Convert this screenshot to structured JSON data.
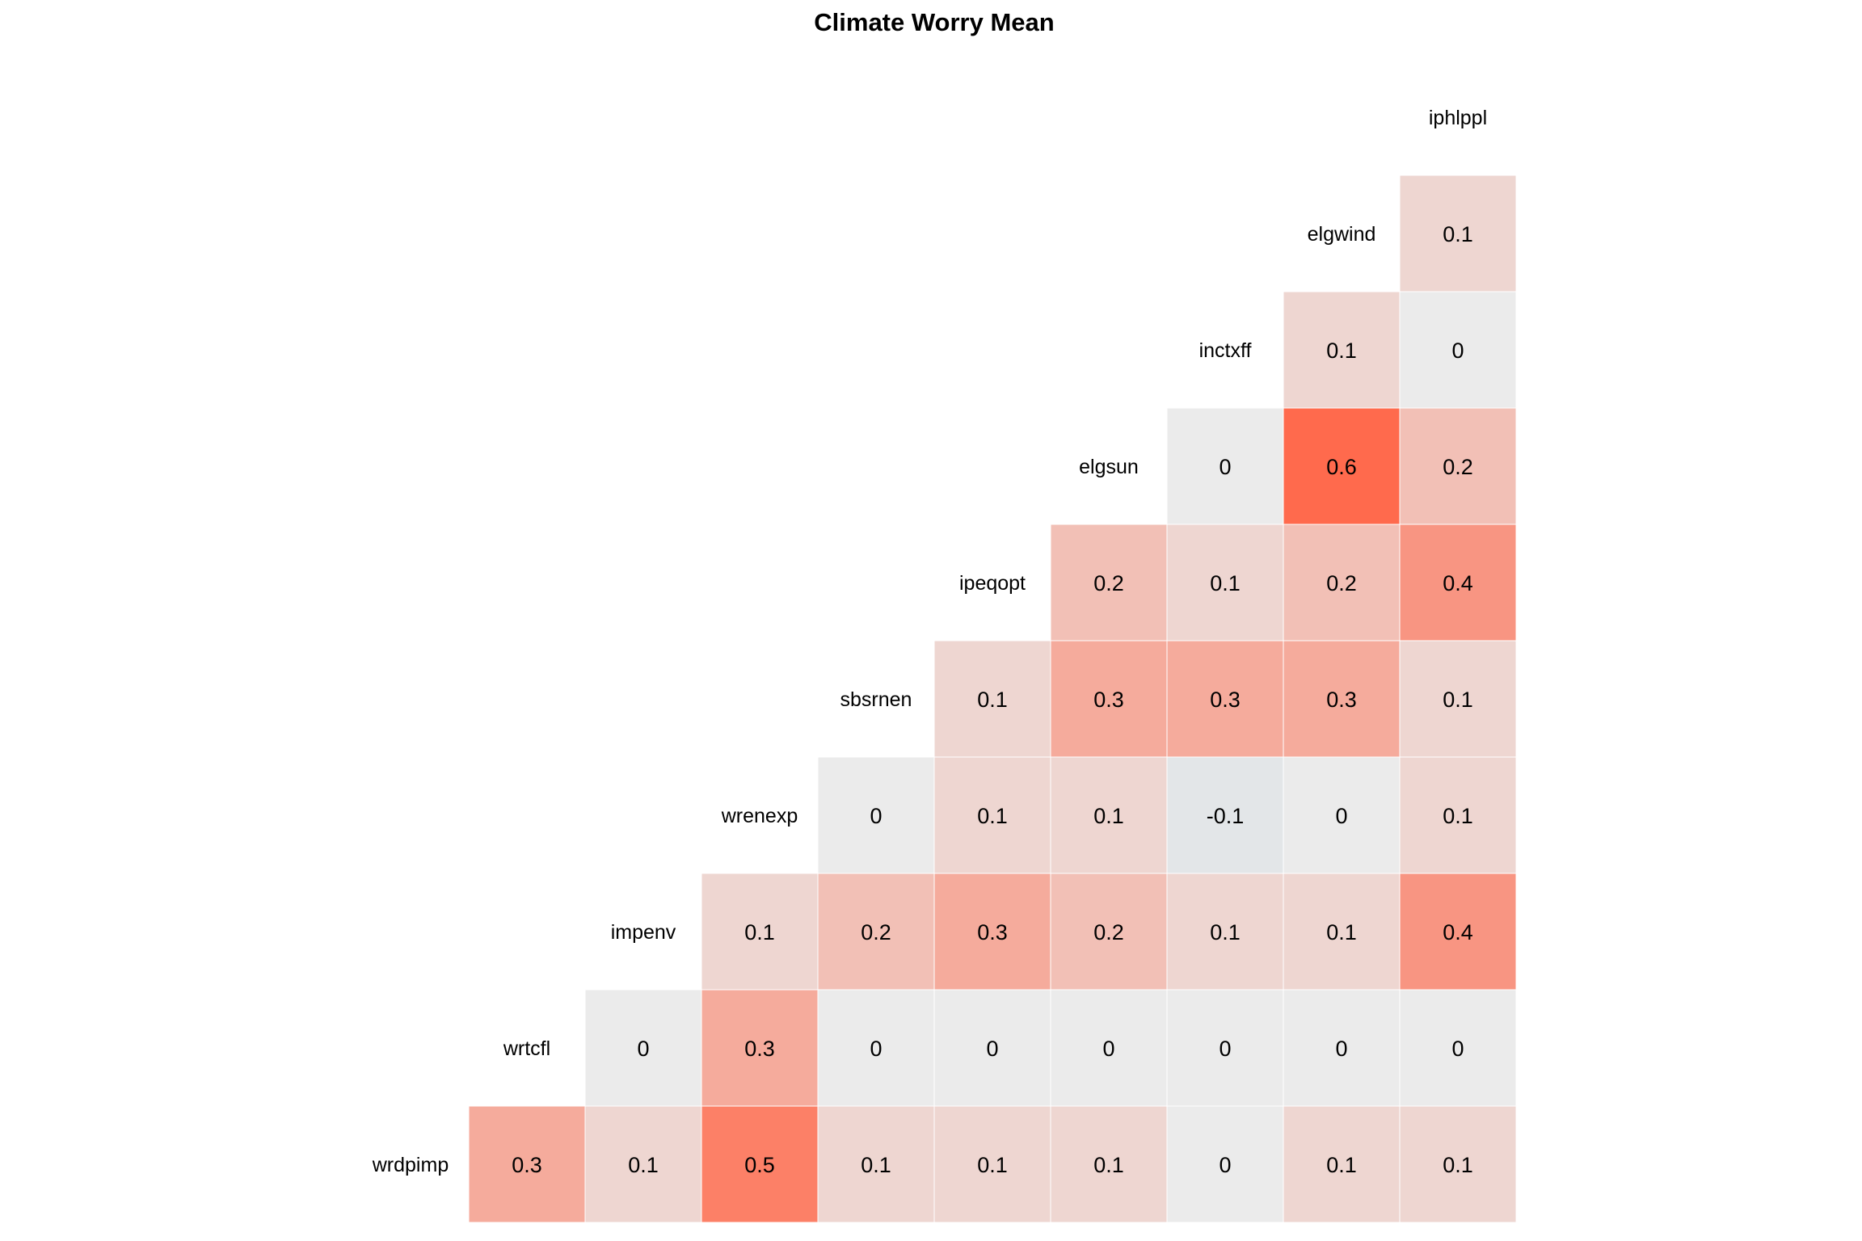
{
  "chart_data": {
    "type": "heatmap",
    "title": "Climate Worry Mean",
    "variables": [
      "wrdpimp",
      "wrtcfl",
      "impenv",
      "wrenexp",
      "sbsrnen",
      "ipeqopt",
      "elgsun",
      "inctxff",
      "elgwind",
      "iphlppl"
    ],
    "rows": [
      {
        "label": "wrdpimp",
        "values": [
          0.3,
          0.1,
          0.5,
          0.1,
          0.1,
          0.1,
          0,
          0.1,
          0.1
        ]
      },
      {
        "label": "wrtcfl",
        "values": [
          0,
          0.3,
          0,
          0,
          0,
          0,
          0,
          0
        ]
      },
      {
        "label": "impenv",
        "values": [
          0.1,
          0.2,
          0.3,
          0.2,
          0.1,
          0.1,
          0.4
        ]
      },
      {
        "label": "wrenexp",
        "values": [
          0,
          0.1,
          0.1,
          -0.1,
          0,
          0.1
        ]
      },
      {
        "label": "sbsrnen",
        "values": [
          0.1,
          0.3,
          0.3,
          0.3,
          0.1
        ]
      },
      {
        "label": "ipeqopt",
        "values": [
          0.2,
          0.1,
          0.2,
          0.4
        ]
      },
      {
        "label": "elgsun",
        "values": [
          0,
          0.6,
          0.2
        ]
      },
      {
        "label": "inctxff",
        "values": [
          0.1,
          0
        ]
      },
      {
        "label": "elgwind",
        "values": [
          0.1
        ]
      },
      {
        "label": "iphlppl",
        "values": []
      }
    ],
    "color_scale": {
      "low": "#b8ced6",
      "mid": "#ebebeb",
      "high": "#ff6a4d",
      "domain": [
        -0.6,
        0,
        0.6
      ]
    },
    "legend": "none",
    "grid": false
  }
}
